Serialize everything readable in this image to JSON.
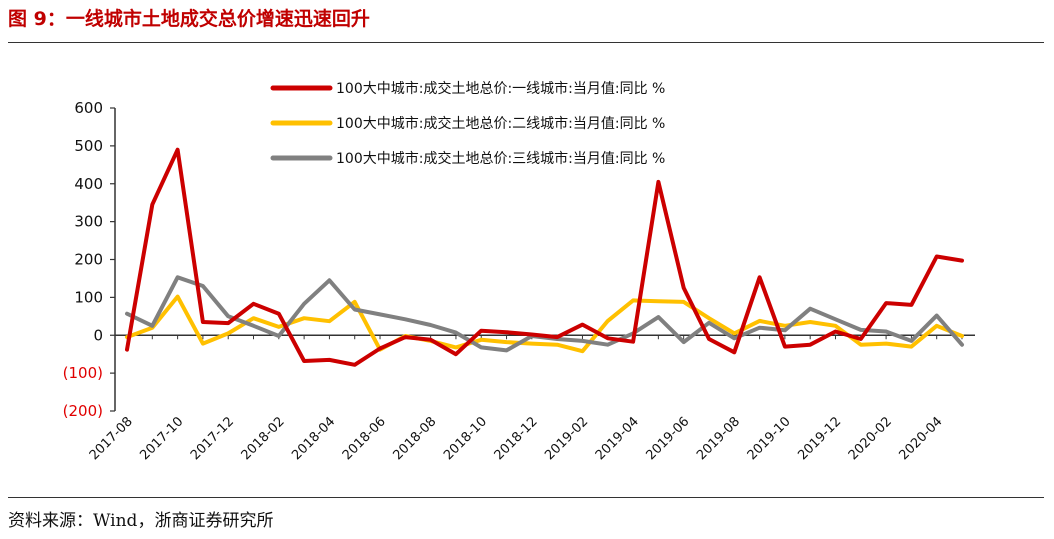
{
  "figure": {
    "title": "图 9：一线城市土地成交总价增速迅速回升",
    "source": "资料来源：Wind，浙商证券研究所"
  },
  "colors": {
    "title": "#c00000",
    "negative_tick": "#e00000",
    "tier1": "#cc0000",
    "tier2": "#ffc000",
    "tier3": "#808080"
  },
  "chart_data": {
    "type": "line",
    "title": "",
    "xlabel": "",
    "ylabel": "",
    "ylim": [
      -200,
      600
    ],
    "yticks": [
      -200,
      -100,
      0,
      100,
      200,
      300,
      400,
      500,
      600
    ],
    "ytick_labels": [
      "(200)",
      "(100)",
      "0",
      "100",
      "200",
      "300",
      "400",
      "500",
      "600"
    ],
    "x": [
      "2017-08",
      "2017-09",
      "2017-10",
      "2017-11",
      "2017-12",
      "2018-01",
      "2018-02",
      "2018-03",
      "2018-04",
      "2018-05",
      "2018-06",
      "2018-07",
      "2018-08",
      "2018-09",
      "2018-10",
      "2018-11",
      "2018-12",
      "2019-01",
      "2019-02",
      "2019-03",
      "2019-04",
      "2019-05",
      "2019-06",
      "2019-07",
      "2019-08",
      "2019-09",
      "2019-10",
      "2019-11",
      "2019-12",
      "2020-01",
      "2020-02",
      "2020-03",
      "2020-04",
      "2020-05"
    ],
    "xtick_labels": [
      "2017-08",
      "2017-10",
      "2017-12",
      "2018-02",
      "2018-04",
      "2018-06",
      "2018-08",
      "2018-10",
      "2018-12",
      "2019-02",
      "2019-04",
      "2019-06",
      "2019-08",
      "2019-10",
      "2019-12",
      "2020-02",
      "2020-04"
    ],
    "legend_position": "top",
    "grid": false,
    "series": [
      {
        "name": "100大中城市:成交土地总价:一线城市:当月值:同比 %",
        "color": "#cc0000",
        "values": [
          -38,
          345,
          490,
          35,
          32,
          83,
          57,
          -68,
          -65,
          -78,
          -35,
          -5,
          -12,
          -50,
          12,
          8,
          2,
          -5,
          28,
          -8,
          -17,
          405,
          125,
          -10,
          -45,
          153,
          -30,
          -25,
          10,
          -10,
          85,
          80,
          208,
          197
        ]
      },
      {
        "name": "100大中城市:成交土地总价:二线城市:当月值:同比 %",
        "color": "#ffc000",
        "values": [
          -5,
          20,
          102,
          -22,
          5,
          45,
          22,
          45,
          37,
          88,
          -38,
          -2,
          -15,
          -32,
          -12,
          -18,
          -22,
          -25,
          -42,
          38,
          92,
          90,
          88,
          45,
          5,
          38,
          25,
          35,
          25,
          -25,
          -22,
          -30,
          25,
          -2
        ]
      },
      {
        "name": "100大中城市:成交土地总价:三线城市:当月值:同比 %",
        "color": "#808080",
        "values": [
          57,
          25,
          153,
          130,
          50,
          25,
          -2,
          83,
          145,
          68,
          55,
          42,
          27,
          7,
          -32,
          -40,
          -2,
          -10,
          -15,
          -25,
          5,
          48,
          -18,
          33,
          -8,
          20,
          13,
          70,
          42,
          14,
          10,
          -15,
          52,
          -25
        ]
      }
    ]
  }
}
